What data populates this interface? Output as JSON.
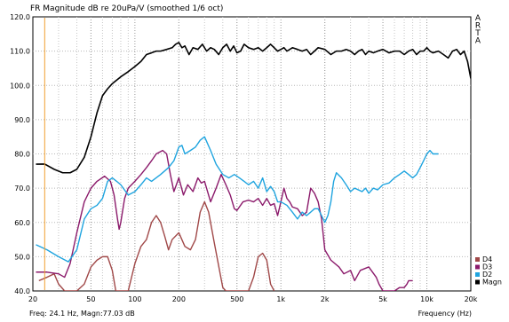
{
  "chart_data": {
    "type": "line",
    "title": "FR Magnitude dB re 20uPa/V (smoothed 1/6 oct)",
    "xlabel": "Frequency (Hz)",
    "ylabel": "",
    "x_scale": "log",
    "xlim": [
      20,
      20000
    ],
    "ylim": [
      40,
      120
    ],
    "x_ticks": [
      {
        "value": 20,
        "label": "20"
      },
      {
        "value": 50,
        "label": "50"
      },
      {
        "value": 100,
        "label": "100"
      },
      {
        "value": 200,
        "label": "200"
      },
      {
        "value": 500,
        "label": "500"
      },
      {
        "value": 1000,
        "label": "1k"
      },
      {
        "value": 2000,
        "label": "2k"
      },
      {
        "value": 5000,
        "label": "5k"
      },
      {
        "value": 10000,
        "label": "10k"
      },
      {
        "value": 20000,
        "label": "20k"
      }
    ],
    "y_ticks": [
      {
        "value": 40,
        "label": "40.0"
      },
      {
        "value": 50,
        "label": "50.0"
      },
      {
        "value": 60,
        "label": "60.0"
      },
      {
        "value": 70,
        "label": "70.0"
      },
      {
        "value": 80,
        "label": "80.0"
      },
      {
        "value": 90,
        "label": "90.0"
      },
      {
        "value": 100,
        "label": "100.0"
      },
      {
        "value": 110,
        "label": "110.0"
      },
      {
        "value": 120,
        "label": "120.0"
      }
    ],
    "grid": true,
    "cursor": {
      "x": 24.1,
      "color": "#f0a030"
    },
    "readout": "Freq: 24.1 Hz, Magn:77.03 dB",
    "watermark": "ARTA",
    "legend_position": "bottom-right",
    "series": [
      {
        "name": "D4",
        "color": "#a04848",
        "points": [
          [
            22,
            43
          ],
          [
            25,
            44
          ],
          [
            28,
            45
          ],
          [
            30,
            42
          ],
          [
            33,
            40
          ],
          [
            40,
            40
          ],
          [
            45,
            42
          ],
          [
            50,
            47
          ],
          [
            55,
            49
          ],
          [
            60,
            50
          ],
          [
            65,
            50
          ],
          [
            70,
            46
          ],
          [
            74,
            40
          ],
          [
            80,
            40
          ],
          [
            90,
            40
          ],
          [
            100,
            48
          ],
          [
            110,
            53
          ],
          [
            120,
            55
          ],
          [
            130,
            60
          ],
          [
            140,
            62
          ],
          [
            150,
            60
          ],
          [
            160,
            56
          ],
          [
            170,
            52
          ],
          [
            180,
            55
          ],
          [
            200,
            57
          ],
          [
            220,
            53
          ],
          [
            240,
            52
          ],
          [
            260,
            55
          ],
          [
            280,
            63
          ],
          [
            300,
            66
          ],
          [
            320,
            63
          ],
          [
            350,
            54
          ],
          [
            380,
            46
          ],
          [
            400,
            41
          ],
          [
            420,
            40
          ],
          [
            500,
            40
          ],
          [
            600,
            40
          ],
          [
            650,
            44
          ],
          [
            700,
            50
          ],
          [
            750,
            51
          ],
          [
            800,
            49
          ],
          [
            850,
            42
          ],
          [
            900,
            40
          ]
        ]
      },
      {
        "name": "D3",
        "color": "#8b1a6b",
        "points": [
          [
            21,
            45.5
          ],
          [
            25,
            45.5
          ],
          [
            30,
            45
          ],
          [
            33,
            44
          ],
          [
            36,
            48
          ],
          [
            40,
            57
          ],
          [
            45,
            66
          ],
          [
            50,
            70
          ],
          [
            55,
            72
          ],
          [
            62,
            73.5
          ],
          [
            68,
            72
          ],
          [
            72,
            68
          ],
          [
            76,
            61
          ],
          [
            78,
            58
          ],
          [
            80,
            60
          ],
          [
            85,
            67
          ],
          [
            90,
            70
          ],
          [
            100,
            72
          ],
          [
            110,
            74
          ],
          [
            120,
            76
          ],
          [
            130,
            78
          ],
          [
            140,
            80
          ],
          [
            155,
            81
          ],
          [
            165,
            80
          ],
          [
            175,
            74
          ],
          [
            185,
            69
          ],
          [
            200,
            73
          ],
          [
            215,
            68
          ],
          [
            230,
            71
          ],
          [
            250,
            69
          ],
          [
            270,
            73
          ],
          [
            285,
            71.5
          ],
          [
            300,
            72
          ],
          [
            330,
            66
          ],
          [
            360,
            70
          ],
          [
            390,
            74
          ],
          [
            420,
            71
          ],
          [
            450,
            68
          ],
          [
            480,
            64
          ],
          [
            500,
            63.5
          ],
          [
            550,
            66
          ],
          [
            600,
            66.5
          ],
          [
            650,
            66
          ],
          [
            700,
            67
          ],
          [
            750,
            65
          ],
          [
            800,
            67
          ],
          [
            850,
            65
          ],
          [
            900,
            65.5
          ],
          [
            950,
            62
          ],
          [
            1000,
            66
          ],
          [
            1050,
            70
          ],
          [
            1100,
            67
          ],
          [
            1150,
            66
          ],
          [
            1200,
            64.5
          ],
          [
            1300,
            64
          ],
          [
            1400,
            62
          ],
          [
            1500,
            63
          ],
          [
            1600,
            70
          ],
          [
            1700,
            68.5
          ],
          [
            1800,
            66
          ],
          [
            1900,
            61
          ],
          [
            2000,
            52
          ],
          [
            2200,
            49
          ],
          [
            2500,
            47
          ],
          [
            2700,
            45
          ],
          [
            3000,
            46
          ],
          [
            3200,
            43
          ],
          [
            3500,
            46
          ],
          [
            4000,
            47
          ],
          [
            4500,
            44
          ],
          [
            4700,
            42
          ],
          [
            5000,
            40
          ],
          [
            6000,
            40
          ],
          [
            6500,
            41
          ],
          [
            7000,
            41
          ],
          [
            7300,
            42
          ],
          [
            7500,
            43
          ],
          [
            8000,
            43
          ]
        ]
      },
      {
        "name": "D2",
        "color": "#1fa4df",
        "points": [
          [
            21,
            53.5
          ],
          [
            25,
            52
          ],
          [
            30,
            50
          ],
          [
            35,
            48.5
          ],
          [
            40,
            52
          ],
          [
            45,
            61
          ],
          [
            50,
            64
          ],
          [
            55,
            65
          ],
          [
            60,
            67
          ],
          [
            65,
            72
          ],
          [
            70,
            73
          ],
          [
            75,
            72
          ],
          [
            80,
            71
          ],
          [
            90,
            68
          ],
          [
            100,
            69
          ],
          [
            110,
            71
          ],
          [
            120,
            73
          ],
          [
            130,
            72
          ],
          [
            150,
            74
          ],
          [
            170,
            76
          ],
          [
            185,
            78
          ],
          [
            200,
            82
          ],
          [
            210,
            82.5
          ],
          [
            220,
            80
          ],
          [
            240,
            81
          ],
          [
            260,
            82
          ],
          [
            280,
            84
          ],
          [
            300,
            85
          ],
          [
            330,
            81
          ],
          [
            360,
            77
          ],
          [
            400,
            74
          ],
          [
            440,
            73
          ],
          [
            480,
            74
          ],
          [
            520,
            73
          ],
          [
            560,
            72
          ],
          [
            600,
            71
          ],
          [
            650,
            72
          ],
          [
            700,
            70
          ],
          [
            750,
            73
          ],
          [
            800,
            69
          ],
          [
            850,
            70.5
          ],
          [
            900,
            69
          ],
          [
            950,
            66
          ],
          [
            1000,
            66
          ],
          [
            1100,
            65
          ],
          [
            1200,
            63
          ],
          [
            1300,
            61
          ],
          [
            1400,
            63
          ],
          [
            1500,
            62
          ],
          [
            1600,
            63
          ],
          [
            1700,
            64
          ],
          [
            1800,
            64
          ],
          [
            1900,
            62
          ],
          [
            2000,
            60
          ],
          [
            2100,
            62
          ],
          [
            2200,
            66
          ],
          [
            2300,
            72
          ],
          [
            2400,
            74.5
          ],
          [
            2600,
            73
          ],
          [
            2800,
            71
          ],
          [
            3000,
            69
          ],
          [
            3200,
            70
          ],
          [
            3400,
            69.5
          ],
          [
            3600,
            69
          ],
          [
            3800,
            70
          ],
          [
            4000,
            68.5
          ],
          [
            4300,
            70
          ],
          [
            4600,
            69.5
          ],
          [
            5000,
            71
          ],
          [
            5500,
            71.5
          ],
          [
            6000,
            73
          ],
          [
            6500,
            74
          ],
          [
            7000,
            75
          ],
          [
            7500,
            74
          ],
          [
            8000,
            73
          ],
          [
            8500,
            74
          ],
          [
            9000,
            76
          ],
          [
            9500,
            78
          ],
          [
            10000,
            80
          ],
          [
            10500,
            81
          ],
          [
            11000,
            80
          ],
          [
            12000,
            80
          ]
        ]
      },
      {
        "name": "Magn",
        "color": "#000000",
        "points": [
          [
            21,
            77
          ],
          [
            24.1,
            77.03
          ],
          [
            28,
            75.5
          ],
          [
            32,
            74.5
          ],
          [
            36,
            74.5
          ],
          [
            40,
            75.5
          ],
          [
            45,
            79
          ],
          [
            50,
            85
          ],
          [
            55,
            92
          ],
          [
            60,
            97
          ],
          [
            65,
            99
          ],
          [
            70,
            100.5
          ],
          [
            80,
            102.5
          ],
          [
            90,
            104
          ],
          [
            100,
            105.5
          ],
          [
            110,
            107
          ],
          [
            120,
            109
          ],
          [
            130,
            109.5
          ],
          [
            140,
            110
          ],
          [
            150,
            110
          ],
          [
            165,
            110.5
          ],
          [
            180,
            111
          ],
          [
            190,
            112
          ],
          [
            200,
            112.5
          ],
          [
            210,
            111
          ],
          [
            220,
            111.5
          ],
          [
            235,
            109
          ],
          [
            250,
            111
          ],
          [
            270,
            110.5
          ],
          [
            290,
            112
          ],
          [
            310,
            110
          ],
          [
            330,
            111
          ],
          [
            350,
            110.5
          ],
          [
            375,
            109
          ],
          [
            400,
            111
          ],
          [
            425,
            112
          ],
          [
            450,
            110
          ],
          [
            475,
            111.5
          ],
          [
            500,
            109.5
          ],
          [
            530,
            110
          ],
          [
            560,
            112
          ],
          [
            600,
            111
          ],
          [
            650,
            110.5
          ],
          [
            700,
            111
          ],
          [
            750,
            110
          ],
          [
            800,
            111
          ],
          [
            850,
            112
          ],
          [
            900,
            111
          ],
          [
            950,
            110
          ],
          [
            1000,
            110.5
          ],
          [
            1050,
            111
          ],
          [
            1100,
            110
          ],
          [
            1200,
            111
          ],
          [
            1300,
            110.5
          ],
          [
            1400,
            110
          ],
          [
            1500,
            110.5
          ],
          [
            1600,
            109
          ],
          [
            1700,
            110
          ],
          [
            1800,
            111
          ],
          [
            2000,
            110.5
          ],
          [
            2200,
            109
          ],
          [
            2400,
            110
          ],
          [
            2600,
            110
          ],
          [
            2800,
            110.5
          ],
          [
            3000,
            110
          ],
          [
            3200,
            109
          ],
          [
            3400,
            110
          ],
          [
            3600,
            110.5
          ],
          [
            3800,
            109
          ],
          [
            4000,
            110
          ],
          [
            4300,
            109.5
          ],
          [
            4600,
            110
          ],
          [
            5000,
            110.5
          ],
          [
            5500,
            109.5
          ],
          [
            6000,
            110
          ],
          [
            6500,
            110
          ],
          [
            7000,
            109
          ],
          [
            7500,
            110
          ],
          [
            8000,
            110.5
          ],
          [
            8500,
            109
          ],
          [
            9000,
            110
          ],
          [
            9500,
            110
          ],
          [
            10000,
            111
          ],
          [
            10500,
            110
          ],
          [
            11000,
            109.5
          ],
          [
            12000,
            110
          ],
          [
            13000,
            109
          ],
          [
            14000,
            108
          ],
          [
            15000,
            110
          ],
          [
            16000,
            110.5
          ],
          [
            17000,
            109
          ],
          [
            18000,
            110
          ],
          [
            19000,
            107
          ],
          [
            20000,
            102
          ]
        ]
      }
    ]
  }
}
